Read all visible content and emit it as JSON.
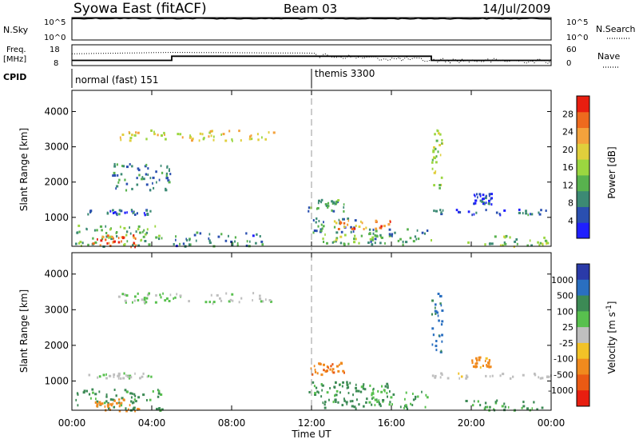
{
  "header": {
    "station": "Syowa East (fitACF)",
    "beam": "Beam 03",
    "date": "14/Jul/2009"
  },
  "strip_labels": {
    "nsky": "N.Sky",
    "nsky_ticks": [
      "10^5",
      "10^0"
    ],
    "nsearch": "N.Search",
    "nsearch_ticks": [
      "10^5",
      "10^0"
    ],
    "freq_label_1": "Freq.",
    "freq_label_2": "[MHz]",
    "freq_ticks": [
      "18",
      "8"
    ],
    "nave": "Nave",
    "nave_ticks": [
      "60",
      "0"
    ],
    "cpid": "CPID",
    "cpid_modes": [
      "normal (fast) 151",
      "themis 3300"
    ]
  },
  "x_axis": {
    "label": "Time UT",
    "ticks": [
      "00:00",
      "04:00",
      "08:00",
      "12:00",
      "16:00",
      "20:00",
      "00:00"
    ]
  },
  "colors": {
    "power": [
      "#1f1fff",
      "#2a4fb0",
      "#3c8a74",
      "#58b24e",
      "#9bd640",
      "#e0cf3c",
      "#f4a23c",
      "#ee6a1e",
      "#e81e10"
    ],
    "velocity": [
      "#2a3aa8",
      "#2a6fc0",
      "#3c8a55",
      "#58c04e",
      "#bfbfbf",
      "#f2c227",
      "#f08a1e",
      "#ea5a14",
      "#e81e10"
    ]
  },
  "chart_data": [
    {
      "type": "line",
      "name": "N.Sky / N.Search",
      "x_range": [
        0,
        24
      ],
      "series": [
        {
          "name": "N.Sky",
          "x": [
            0,
            1,
            4,
            8,
            12,
            16,
            20,
            24
          ],
          "values": [
            60000,
            70000,
            65000,
            62000,
            58000,
            60000,
            62000,
            60000
          ]
        }
      ]
    },
    {
      "type": "line",
      "name": "Freq / Nave",
      "x_range": [
        0,
        24
      ],
      "series": [
        {
          "name": "Freq",
          "x": [
            0,
            5,
            5,
            18,
            18,
            24
          ],
          "values": [
            10.5,
            10.5,
            12.5,
            12.5,
            10.5,
            10.5
          ]
        },
        {
          "name": "Nave",
          "x": [
            0,
            5,
            12,
            18,
            24
          ],
          "values": [
            34,
            38,
            36,
            22,
            20
          ]
        }
      ],
      "yticks": [
        "18",
        "8"
      ],
      "y2ticks": [
        "60",
        "0"
      ]
    },
    {
      "type": "heatmap",
      "name": "Power",
      "xlabel": "Time UT",
      "ylabel": "Slant Range [km]",
      "x_range": [
        0,
        24
      ],
      "y_range": [
        180,
        4600
      ],
      "yticks": [
        1000,
        2000,
        3000,
        4000
      ],
      "colorbar": {
        "label": "Power [dB]",
        "ticks": [
          4,
          8,
          12,
          16,
          20,
          24,
          28
        ],
        "range": [
          0,
          32
        ]
      },
      "patches": [
        {
          "t0": 0.1,
          "t1": 4.5,
          "r0": 200,
          "r1": 800,
          "v": 12
        },
        {
          "t0": 1.0,
          "t1": 3.3,
          "r0": 190,
          "r1": 520,
          "v": 27
        },
        {
          "t0": 0.5,
          "t1": 4.0,
          "r0": 1100,
          "r1": 1250,
          "v": 6
        },
        {
          "t0": 2.3,
          "t1": 10.1,
          "r0": 3200,
          "r1": 3500,
          "v": 20
        },
        {
          "t0": 2.0,
          "t1": 5.0,
          "r0": 1800,
          "r1": 2600,
          "v": 8
        },
        {
          "t0": 5.0,
          "t1": 9.5,
          "r0": 200,
          "r1": 600,
          "v": 8
        },
        {
          "t0": 11.8,
          "t1": 13.6,
          "r0": 1200,
          "r1": 1550,
          "v": 10
        },
        {
          "t0": 11.8,
          "t1": 14.2,
          "r0": 600,
          "r1": 1000,
          "v": 8
        },
        {
          "t0": 13.0,
          "t1": 16.0,
          "r0": 700,
          "r1": 950,
          "v": 24
        },
        {
          "t0": 12.5,
          "t1": 15.5,
          "r0": 250,
          "r1": 550,
          "v": 14
        },
        {
          "t0": 14.8,
          "t1": 18.0,
          "r0": 250,
          "r1": 750,
          "v": 10
        },
        {
          "t0": 18.0,
          "t1": 18.5,
          "r0": 1800,
          "r1": 3500,
          "v": 16
        },
        {
          "t0": 18.0,
          "t1": 24.0,
          "r0": 1100,
          "r1": 1250,
          "v": 6
        },
        {
          "t0": 20.0,
          "t1": 21.0,
          "r0": 1400,
          "r1": 1700,
          "v": 4
        },
        {
          "t0": 19.5,
          "t1": 23.8,
          "r0": 200,
          "r1": 500,
          "v": 14
        }
      ]
    },
    {
      "type": "heatmap",
      "name": "Velocity",
      "xlabel": "Time UT",
      "ylabel": "Slant Range [km]",
      "x_range": [
        0,
        24
      ],
      "y_range": [
        180,
        4600
      ],
      "yticks": [
        1000,
        2000,
        3000,
        4000
      ],
      "colorbar": {
        "label": "Velocity [m s^-1]",
        "ticks": [
          "1000",
          "500",
          "100",
          "25",
          "-25",
          "-100",
          "-500",
          "-1000"
        ],
        "range": [
          -1200,
          1200
        ]
      },
      "patches": [
        {
          "t0": 0.1,
          "t1": 4.5,
          "r0": 200,
          "r1": 800,
          "v": 150
        },
        {
          "t0": 1.0,
          "t1": 3.3,
          "r0": 190,
          "r1": 520,
          "v": -300
        },
        {
          "t0": 0.5,
          "t1": 4.0,
          "r0": 1100,
          "r1": 1250,
          "v": 20
        },
        {
          "t0": 2.3,
          "t1": 10.1,
          "r0": 3200,
          "r1": 3500,
          "v": 30
        },
        {
          "t0": 11.8,
          "t1": 13.6,
          "r0": 1200,
          "r1": 1550,
          "v": -400
        },
        {
          "t0": 11.8,
          "t1": 14.2,
          "r0": 600,
          "r1": 1000,
          "v": 150
        },
        {
          "t0": 13.0,
          "t1": 16.0,
          "r0": 700,
          "r1": 950,
          "v": 120
        },
        {
          "t0": 12.5,
          "t1": 15.5,
          "r0": 250,
          "r1": 550,
          "v": 200
        },
        {
          "t0": 14.8,
          "t1": 18.0,
          "r0": 250,
          "r1": 750,
          "v": 100
        },
        {
          "t0": 18.0,
          "t1": 18.5,
          "r0": 1800,
          "r1": 3500,
          "v": 600
        },
        {
          "t0": 18.0,
          "t1": 24.0,
          "r0": 1100,
          "r1": 1250,
          "v": 0
        },
        {
          "t0": 20.0,
          "t1": 21.0,
          "r0": 1400,
          "r1": 1700,
          "v": -200
        },
        {
          "t0": 19.5,
          "t1": 23.8,
          "r0": 200,
          "r1": 500,
          "v": 150
        }
      ]
    }
  ]
}
